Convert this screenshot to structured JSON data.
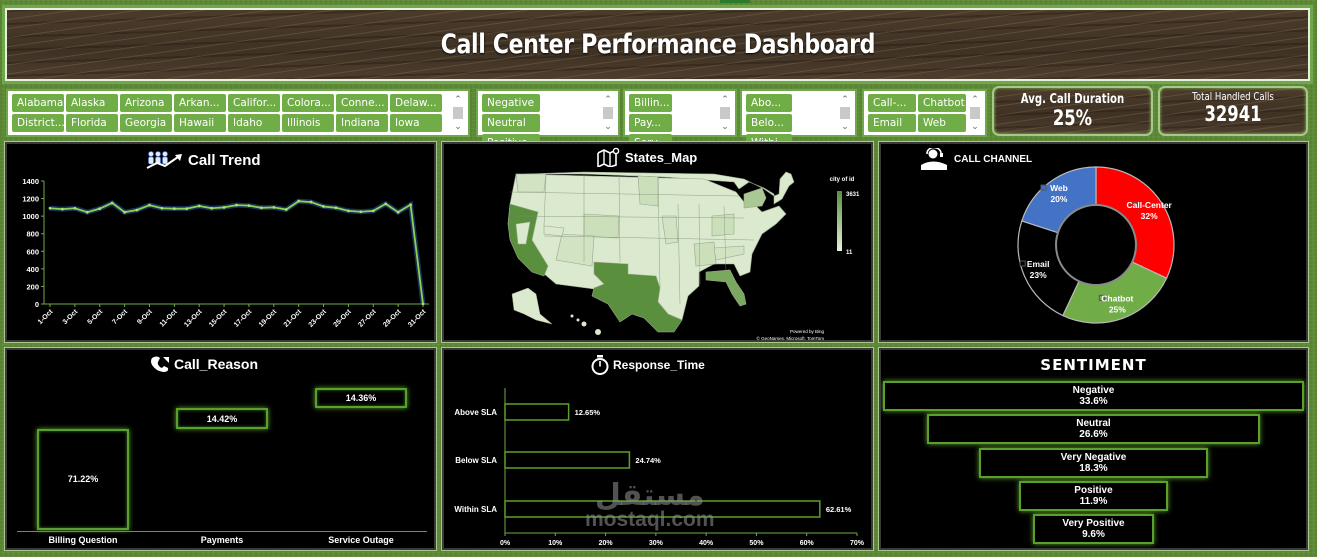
{
  "header": {
    "title": "Call Center Performance Dashboard"
  },
  "slicers": {
    "states": {
      "items": [
        "Alabama",
        "Alaska",
        "Arizona",
        "Arkan...",
        "Califor...",
        "Colora...",
        "Conne...",
        "Delaw...",
        "District...",
        "Florida",
        "Georgia",
        "Hawaii",
        "Idaho",
        "Illinois",
        "Indiana",
        "Iowa"
      ]
    },
    "sentiment": {
      "items": [
        "Negative",
        "Neutral",
        "Positive",
        "Very Ne..."
      ]
    },
    "reason": {
      "items": [
        "Billin...",
        "Pay...",
        "Serv..."
      ]
    },
    "response": {
      "items": [
        "Abo...",
        "Belo...",
        "Withi..."
      ]
    },
    "channel": {
      "items": [
        "Call-...",
        "Chatbot",
        "Email",
        "Web"
      ]
    },
    "scroll_up": "⌃",
    "scroll_down": "⌄"
  },
  "kpis": {
    "avg_duration": {
      "label": "Avg. Call Duration",
      "value": "25%"
    },
    "total_calls": {
      "label": "Total Handled Calls",
      "value": "32941"
    }
  },
  "panels": {
    "call_trend": {
      "title": "Call Trend"
    },
    "states_map": {
      "title": "States_Map",
      "legend_title": "city of id",
      "legend_max": "3631",
      "legend_min": "11",
      "credit_1": "Powered by Bing",
      "credit_2": "© GeoNames, Microsoft, TomTom"
    },
    "call_channel": {
      "title": "CALL CHANNEL"
    },
    "call_reason": {
      "title": "Call_Reason"
    },
    "response_time": {
      "title": "Response_Time"
    },
    "sentiment": {
      "title": "SENTIMENT"
    }
  },
  "colors": {
    "accent_green": "#70ad47",
    "frame_green": "#6ea84a",
    "line_green": "#8fd14f",
    "call_center_red": "#ff0000",
    "chatbot_green": "#70ad47",
    "email_black": "#000000",
    "web_blue": "#4472c4"
  },
  "watermark": {
    "arabic": "مستقل",
    "latin": "mostaql.com"
  },
  "chart_data": [
    {
      "type": "line",
      "title": "Call Trend",
      "xlabel": "",
      "ylabel": "",
      "x": [
        "1-Oct",
        "2-Oct",
        "3-Oct",
        "4-Oct",
        "5-Oct",
        "6-Oct",
        "7-Oct",
        "8-Oct",
        "9-Oct",
        "10-Oct",
        "11-Oct",
        "12-Oct",
        "13-Oct",
        "14-Oct",
        "15-Oct",
        "16-Oct",
        "17-Oct",
        "18-Oct",
        "19-Oct",
        "20-Oct",
        "21-Oct",
        "22-Oct",
        "23-Oct",
        "24-Oct",
        "25-Oct",
        "26-Oct",
        "27-Oct",
        "28-Oct",
        "29-Oct",
        "30-Oct",
        "31-Oct"
      ],
      "x_tick_labels": [
        "1-Oct",
        "3-Oct",
        "5-Oct",
        "7-Oct",
        "9-Oct",
        "11-Oct",
        "13-Oct",
        "15-Oct",
        "17-Oct",
        "19-Oct",
        "21-Oct",
        "23-Oct",
        "25-Oct",
        "27-Oct",
        "29-Oct",
        "31-Oct"
      ],
      "values": [
        1090,
        1080,
        1090,
        1045,
        1085,
        1150,
        1045,
        1070,
        1125,
        1090,
        1085,
        1085,
        1115,
        1090,
        1100,
        1125,
        1120,
        1095,
        1100,
        1075,
        1170,
        1160,
        1110,
        1095,
        1060,
        1050,
        1060,
        1140,
        1045,
        1130,
        0
      ],
      "ylim": [
        0,
        1400
      ],
      "y_ticks": [
        0,
        200,
        400,
        600,
        800,
        1000,
        1200,
        1400
      ],
      "grid": false
    },
    {
      "type": "heatmap",
      "title": "States_Map",
      "legend_title": "city of id",
      "range": [
        11,
        3631
      ],
      "highlighted_states": {
        "California": "high",
        "Texas": "high",
        "Florida": "medium-high",
        "New York": "medium"
      }
    },
    {
      "type": "pie",
      "title": "CALL CHANNEL",
      "donut": true,
      "categories": [
        "Call-Center",
        "Chatbot",
        "Email",
        "Web"
      ],
      "values": [
        32,
        25,
        23,
        20
      ],
      "labels": [
        "32%",
        "25%",
        "23%",
        "20%"
      ],
      "colors": [
        "#ff0000",
        "#70ad47",
        "#000000",
        "#4472c4"
      ]
    },
    {
      "type": "bar",
      "title": "Call_Reason",
      "categories": [
        "Billing Question",
        "Payments",
        "Service Outage"
      ],
      "values": [
        71.22,
        14.42,
        14.36
      ],
      "labels": [
        "71.22%",
        "14.42%",
        "14.36%"
      ],
      "note": "waterfall-style floating columns"
    },
    {
      "type": "bar",
      "orientation": "horizontal",
      "title": "Response_Time",
      "categories": [
        "Above SLA",
        "Below SLA",
        "Within SLA"
      ],
      "values": [
        12.65,
        24.74,
        62.61
      ],
      "labels": [
        "12.65%",
        "24.74%",
        "62.61%"
      ],
      "xlim": [
        0,
        70
      ],
      "x_ticks": [
        "0%",
        "10%",
        "20%",
        "30%",
        "40%",
        "50%",
        "60%",
        "70%"
      ]
    },
    {
      "type": "bar",
      "subtype": "funnel",
      "title": "SENTIMENT",
      "categories": [
        "Negative",
        "Neutral",
        "Very Negative",
        "Positive",
        "Very Positive"
      ],
      "values": [
        33.6,
        26.6,
        18.3,
        11.9,
        9.6
      ],
      "labels": [
        "33.6%",
        "26.6%",
        "18.3%",
        "11.9%",
        "9.6%"
      ]
    }
  ]
}
